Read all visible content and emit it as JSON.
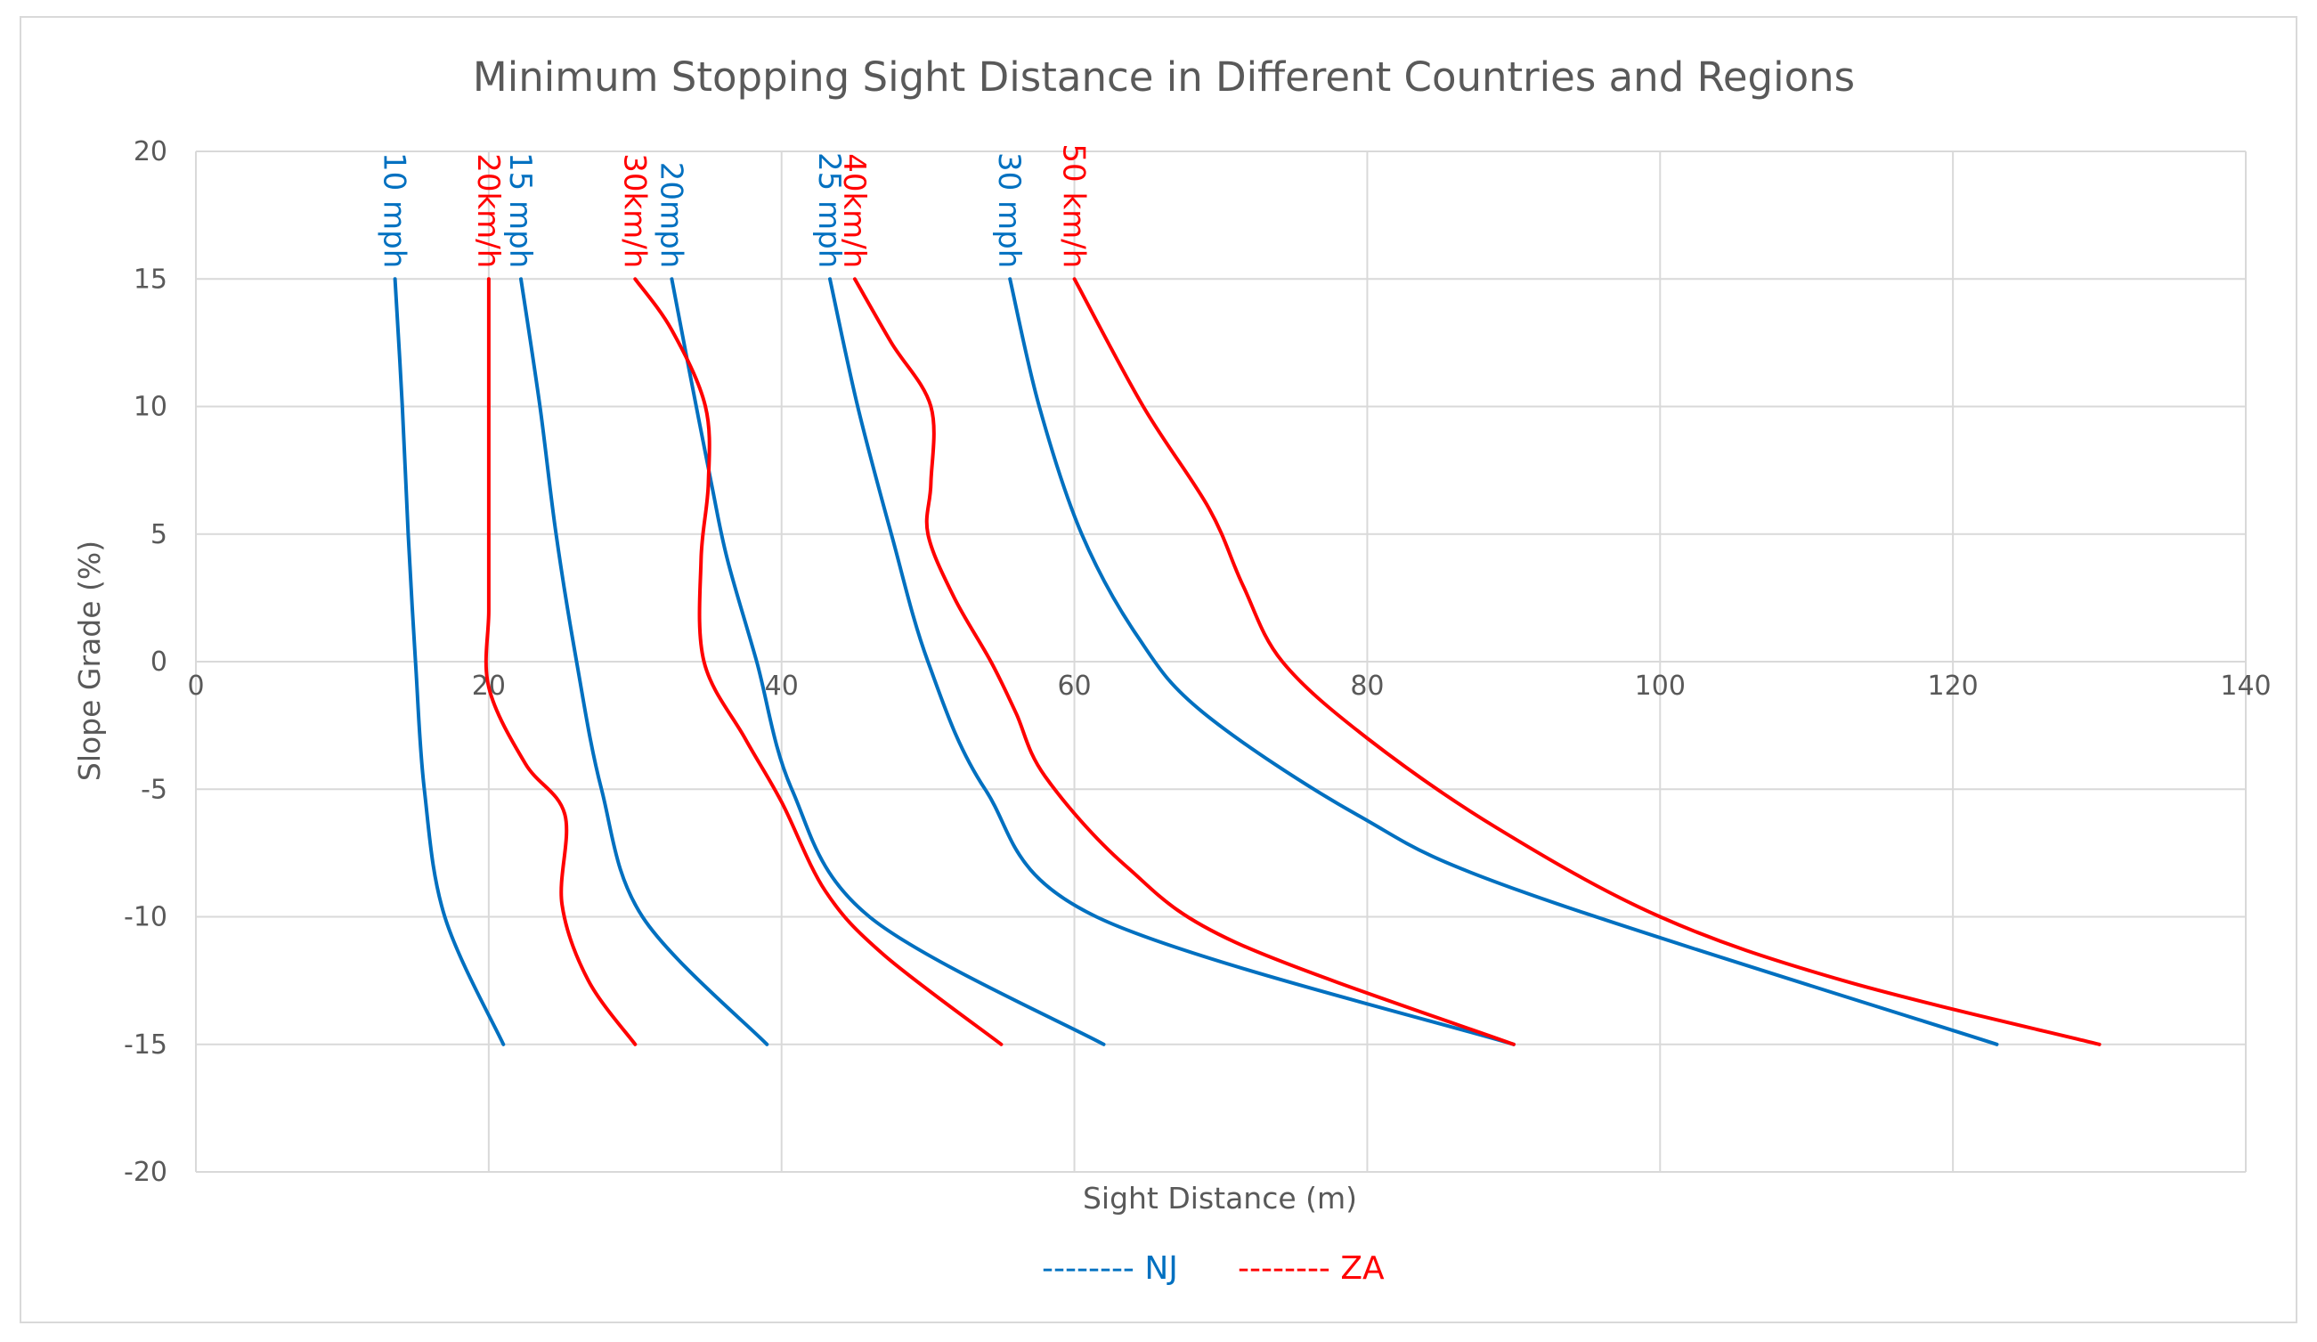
{
  "colors": {
    "NJ": "#0070c0",
    "ZA": "#ff0000",
    "grid": "#d9d9d9",
    "text": "#595959"
  },
  "chart_data": {
    "type": "line",
    "title": "Minimum Stopping Sight Distance in Different Countries and Regions",
    "xlabel": "Sight Distance (m)",
    "ylabel": "Slope Grade (%)",
    "xlim": [
      0,
      140
    ],
    "ylim": [
      -20,
      20
    ],
    "xticks": [
      0,
      20,
      40,
      60,
      80,
      100,
      120,
      140
    ],
    "yticks": [
      20,
      15,
      10,
      5,
      0,
      -5,
      -10,
      -15,
      -20
    ],
    "grid": true,
    "legend": {
      "placement": "bottom",
      "entries": [
        {
          "group": "NJ",
          "label": "-------- NJ"
        },
        {
          "group": "ZA",
          "label": "-------- ZA"
        }
      ]
    },
    "series": [
      {
        "name": "10 mph",
        "group": "NJ",
        "points": [
          [
            13.6,
            15
          ],
          [
            14.1,
            10
          ],
          [
            14.5,
            5
          ],
          [
            15.0,
            0
          ],
          [
            15.6,
            -5
          ],
          [
            17.0,
            -10
          ],
          [
            21,
            -15
          ]
        ]
      },
      {
        "name": "15 mph",
        "group": "NJ",
        "points": [
          [
            22.2,
            15
          ],
          [
            23.5,
            10
          ],
          [
            24.6,
            5
          ],
          [
            26.0,
            0
          ],
          [
            27.7,
            -5
          ],
          [
            30.5,
            -10
          ],
          [
            39,
            -15
          ]
        ]
      },
      {
        "name": "20mph",
        "group": "NJ",
        "points": [
          [
            32.5,
            15
          ],
          [
            33.5,
            12
          ],
          [
            35.2,
            7
          ],
          [
            36.3,
            4
          ],
          [
            38.3,
            0
          ],
          [
            40.7,
            -5
          ],
          [
            46.0,
            -10
          ],
          [
            62,
            -15
          ]
        ]
      },
      {
        "name": "25 mph",
        "group": "NJ",
        "points": [
          [
            43.3,
            15
          ],
          [
            45.2,
            10
          ],
          [
            47.5,
            5
          ],
          [
            50.0,
            0
          ],
          [
            53.9,
            -5
          ],
          [
            61.5,
            -10
          ],
          [
            90,
            -15
          ]
        ]
      },
      {
        "name": "30 mph",
        "group": "NJ",
        "points": [
          [
            55.6,
            15
          ],
          [
            57.6,
            10
          ],
          [
            60.5,
            5
          ],
          [
            64.3,
            1
          ],
          [
            68.8,
            -2
          ],
          [
            79.3,
            -6
          ],
          [
            90.5,
            -9
          ],
          [
            123,
            -15
          ]
        ]
      },
      {
        "name": "20km/h",
        "group": "ZA",
        "points": [
          [
            20,
            15
          ],
          [
            20,
            10
          ],
          [
            20,
            5
          ],
          [
            20,
            2
          ],
          [
            20,
            -1
          ],
          [
            22.5,
            -4
          ],
          [
            25.2,
            -6
          ],
          [
            25,
            -9.5
          ],
          [
            26.8,
            -12.5
          ],
          [
            30,
            -15
          ]
        ]
      },
      {
        "name": "30km/h",
        "group": "ZA",
        "points": [
          [
            30,
            15
          ],
          [
            32.5,
            13
          ],
          [
            34.8,
            10
          ],
          [
            35,
            7
          ],
          [
            34.5,
            4
          ],
          [
            34.7,
            0
          ],
          [
            37.5,
            -3
          ],
          [
            40,
            -5.5
          ],
          [
            43,
            -9
          ],
          [
            47,
            -11.5
          ],
          [
            55,
            -15
          ]
        ]
      },
      {
        "name": "40km/h",
        "group": "ZA",
        "points": [
          [
            45,
            15
          ],
          [
            47.5,
            12.5
          ],
          [
            50.2,
            10
          ],
          [
            50.2,
            7
          ],
          [
            50,
            5
          ],
          [
            51.8,
            2.5
          ],
          [
            54.3,
            0
          ],
          [
            56,
            -2
          ],
          [
            58,
            -4.5
          ],
          [
            63.5,
            -8
          ],
          [
            71,
            -11
          ],
          [
            90,
            -15
          ]
        ]
      },
      {
        "name": "50 km/h",
        "group": "ZA",
        "points": [
          [
            60,
            15
          ],
          [
            64.7,
            10
          ],
          [
            69.2,
            6
          ],
          [
            71.5,
            3
          ],
          [
            74.2,
            0
          ],
          [
            80,
            -3
          ],
          [
            88.8,
            -6.5
          ],
          [
            100,
            -10
          ],
          [
            112.5,
            -12.5
          ],
          [
            130,
            -15
          ]
        ]
      }
    ]
  }
}
